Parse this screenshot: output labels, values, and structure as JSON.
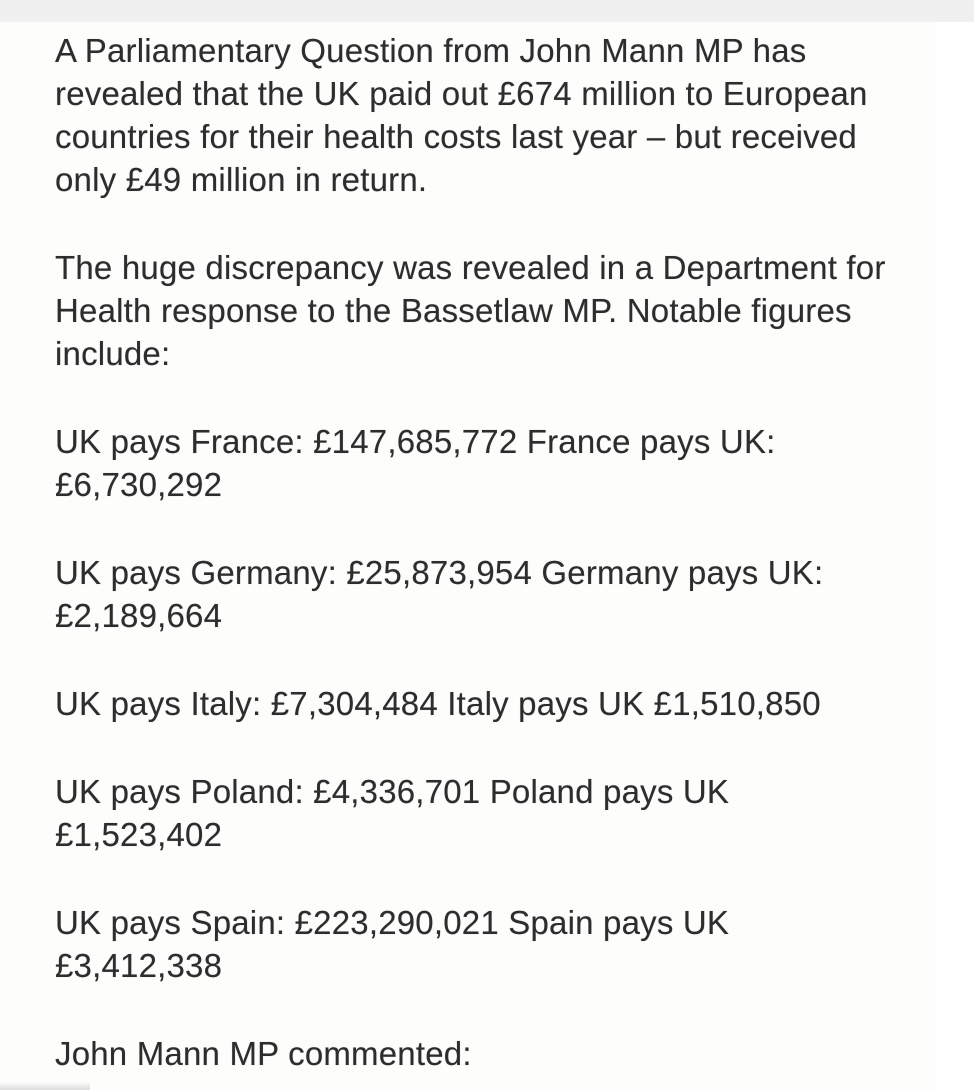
{
  "page": {
    "top_strip_color": "#f0f0f1",
    "column_background": "#fdfdfc",
    "text_color": "#2d2d2d"
  },
  "article": {
    "paragraphs": [
      {
        "text": "A Parliamentary Question from John Mann MP has\nrevealed that the UK paid out £674 million to European\ncountries for their health costs last year – but received\nonly £49 million in return."
      },
      {
        "text": "The huge discrepancy was revealed in a Department for\nHealth response to the Bassetlaw MP. Notable figures\ninclude:"
      },
      {
        "text": "UK pays France: £147,685,772 France pays UK:\n£6,730,292"
      },
      {
        "text": "UK pays Germany: £25,873,954 Germany pays UK:\n£2,189,664"
      },
      {
        "text": "UK pays Italy: £7,304,484 Italy pays UK £1,510,850"
      },
      {
        "text": "UK pays Poland: £4,336,701 Poland pays UK\n£1,523,402"
      },
      {
        "text": "UK pays Spain: £223,290,021 Spain pays UK\n£3,412,338"
      },
      {
        "text": "John Mann MP commented:"
      }
    ],
    "figures": [
      {
        "country": "France",
        "uk_pays": "£147,685,772",
        "pays_uk": "£6,730,292"
      },
      {
        "country": "Germany",
        "uk_pays": "£25,873,954",
        "pays_uk": "£2,189,664"
      },
      {
        "country": "Italy",
        "uk_pays": "£7,304,484",
        "pays_uk": "£1,510,850"
      },
      {
        "country": "Poland",
        "uk_pays": "£4,336,701",
        "pays_uk": "£1,523,402"
      },
      {
        "country": "Spain",
        "uk_pays": "£223,290,021",
        "pays_uk": "£3,412,338"
      }
    ],
    "totals": {
      "uk_paid_out": "£674 million",
      "uk_received": "£49 million"
    }
  }
}
